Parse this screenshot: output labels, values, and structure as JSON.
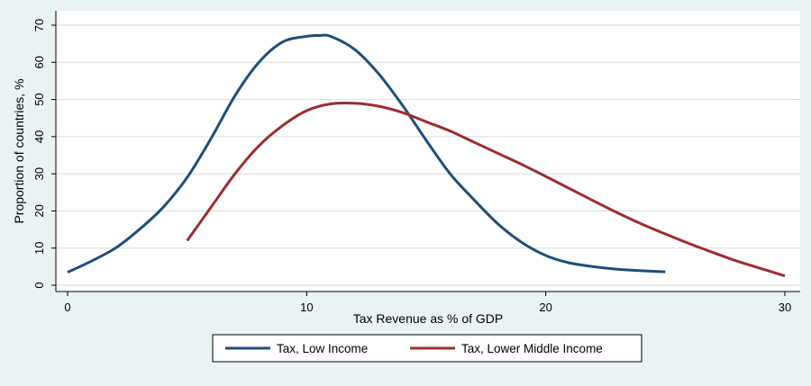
{
  "chart_data": {
    "type": "line",
    "xlabel": "Tax Revenue as % of GDP",
    "ylabel": "Proportion of countries, %",
    "xlim": [
      0,
      30
    ],
    "ylim": [
      0,
      70
    ],
    "xticks": [
      0,
      10,
      20,
      30
    ],
    "yticks": [
      0,
      10,
      20,
      30,
      40,
      50,
      60,
      70
    ],
    "grid": true,
    "legend_position": "bottom",
    "colors": {
      "plot_background": "#ffffff",
      "outer_background": "#eaf2f3",
      "grid": "#d3dde0"
    },
    "series": [
      {
        "name": "Tax, Low Income",
        "color": "#1f4e79",
        "x": [
          0,
          1,
          2,
          3,
          4,
          5,
          6,
          7,
          8,
          9,
          10,
          10.5,
          11,
          12,
          13,
          14,
          15,
          16,
          17,
          18,
          19,
          20,
          21,
          22,
          23,
          24,
          25
        ],
        "y": [
          3.5,
          6.5,
          10,
          15,
          21,
          29,
          39.5,
          51,
          60,
          65.5,
          67,
          67.2,
          67,
          63.5,
          57,
          48.5,
          39,
          30,
          23,
          16.5,
          11.5,
          8,
          6,
          5,
          4.3,
          3.9,
          3.6
        ]
      },
      {
        "name": "Tax, Lower Middle Income",
        "color": "#9b2d30",
        "x": [
          5,
          6,
          7,
          8,
          9,
          10,
          11,
          12,
          13,
          14,
          15,
          16,
          17,
          18,
          19,
          20,
          21,
          22,
          23,
          24,
          25,
          26,
          27,
          28,
          29,
          30
        ],
        "y": [
          12,
          21,
          30,
          37.5,
          43,
          47,
          48.8,
          49,
          48.2,
          46.5,
          44,
          41.5,
          38.5,
          35.5,
          32.5,
          29.3,
          26,
          22.7,
          19.5,
          16.5,
          13.8,
          11.2,
          8.8,
          6.5,
          4.5,
          2.5
        ]
      }
    ]
  }
}
